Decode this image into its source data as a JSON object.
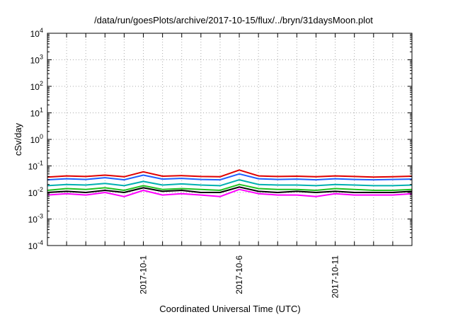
{
  "chart_data": {
    "type": "line",
    "title": "/data/run/goesPlots/archive/2017-10-15/flux/../bryn/31daysMoon.plot",
    "xlabel": "Coordinated Universal Time (UTC)",
    "ylabel": "cSv/day",
    "yscale": "log",
    "ylim": [
      0.0001,
      10000
    ],
    "xlim": [
      "2017-09-26",
      "2017-10-15"
    ],
    "grid": true,
    "legend": "none",
    "y_ticks": [
      {
        "base": "10",
        "exp": "-4"
      },
      {
        "base": "10",
        "exp": "-3"
      },
      {
        "base": "10",
        "exp": "-2"
      },
      {
        "base": "10",
        "exp": "-1"
      },
      {
        "base": "10",
        "exp": "0"
      },
      {
        "base": "10",
        "exp": "1"
      },
      {
        "base": "10",
        "exp": "2"
      },
      {
        "base": "10",
        "exp": "3"
      },
      {
        "base": "10",
        "exp": "4"
      }
    ],
    "x_tick_labels": [
      {
        "label": "2017-10-1",
        "date": "2017-10-01"
      },
      {
        "label": "2017-10-6",
        "date": "2017-10-06"
      },
      {
        "label": "2017-10-11",
        "date": "2017-10-11"
      }
    ],
    "x_tick_dates": [
      "2017-09-26",
      "2017-09-27",
      "2017-09-28",
      "2017-09-29",
      "2017-09-30",
      "2017-10-01",
      "2017-10-02",
      "2017-10-03",
      "2017-10-04",
      "2017-10-05",
      "2017-10-06",
      "2017-10-07",
      "2017-10-08",
      "2017-10-09",
      "2017-10-10",
      "2017-10-11",
      "2017-10-12",
      "2017-10-13",
      "2017-10-14",
      "2017-10-15"
    ],
    "x": [
      "2017-09-26",
      "2017-09-27",
      "2017-09-28",
      "2017-09-29",
      "2017-09-30",
      "2017-10-01",
      "2017-10-02",
      "2017-10-03",
      "2017-10-04",
      "2017-10-05",
      "2017-10-06",
      "2017-10-07",
      "2017-10-08",
      "2017-10-09",
      "2017-10-10",
      "2017-10-11",
      "2017-10-12",
      "2017-10-13",
      "2017-10-14",
      "2017-10-15"
    ],
    "series": [
      {
        "color": "#e00000",
        "values": [
          0.038,
          0.042,
          0.04,
          0.045,
          0.039,
          0.06,
          0.041,
          0.043,
          0.04,
          0.039,
          0.07,
          0.042,
          0.04,
          0.041,
          0.039,
          0.042,
          0.04,
          0.038,
          0.039,
          0.041
        ]
      },
      {
        "color": "#2060ff",
        "values": [
          0.03,
          0.033,
          0.031,
          0.036,
          0.03,
          0.045,
          0.032,
          0.034,
          0.031,
          0.03,
          0.05,
          0.033,
          0.031,
          0.032,
          0.03,
          0.033,
          0.031,
          0.03,
          0.031,
          0.032
        ]
      },
      {
        "color": "#00b0b0",
        "values": [
          0.018,
          0.02,
          0.019,
          0.022,
          0.018,
          0.026,
          0.019,
          0.021,
          0.019,
          0.018,
          0.03,
          0.02,
          0.019,
          0.019,
          0.018,
          0.02,
          0.019,
          0.018,
          0.018,
          0.019
        ]
      },
      {
        "color": "#20c020",
        "values": [
          0.012,
          0.014,
          0.013,
          0.015,
          0.012,
          0.018,
          0.013,
          0.014,
          0.013,
          0.012,
          0.02,
          0.014,
          0.013,
          0.013,
          0.012,
          0.014,
          0.013,
          0.012,
          0.012,
          0.013
        ]
      },
      {
        "color": "#000000",
        "values": [
          0.01,
          0.011,
          0.01,
          0.012,
          0.01,
          0.015,
          0.011,
          0.012,
          0.01,
          0.01,
          0.016,
          0.011,
          0.01,
          0.011,
          0.01,
          0.011,
          0.01,
          0.01,
          0.01,
          0.011
        ]
      },
      {
        "color": "#ff00ff",
        "values": [
          0.008,
          0.009,
          0.008,
          0.01,
          0.007,
          0.012,
          0.008,
          0.009,
          0.008,
          0.007,
          0.013,
          0.009,
          0.008,
          0.008,
          0.007,
          0.009,
          0.008,
          0.008,
          0.008,
          0.009
        ]
      }
    ]
  }
}
